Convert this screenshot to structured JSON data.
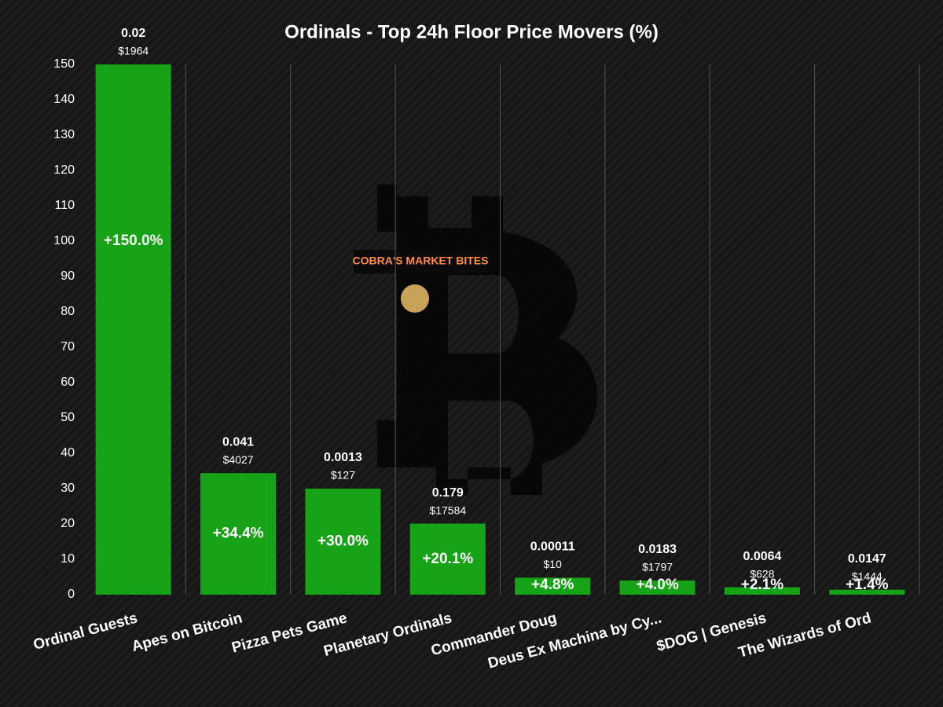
{
  "chart_data": {
    "type": "bar",
    "title": "Ordinals - Top 24h Floor Price Movers (%)",
    "watermark": "COBRA'S MARKET BITES",
    "categories": [
      "Ordinal Guests",
      "Apes on Bitcoin",
      "Pizza Pets Game",
      "Planetary Ordinals",
      "Commander Doug",
      "Deus Ex Machina by Cy...",
      "$DOG | Genesis",
      "The Wizards of Ord"
    ],
    "values": [
      150.0,
      34.4,
      30.0,
      20.1,
      4.8,
      4.0,
      2.1,
      1.4
    ],
    "value_labels": [
      "+150.0%",
      "+34.4%",
      "+30.0%",
      "+20.1%",
      "+4.8%",
      "+4.0%",
      "+2.1%",
      "+1.4%"
    ],
    "floor_labels": [
      "0.02",
      "0.041",
      "0.0013",
      "0.179",
      "0.00011",
      "0.0183",
      "0.0064",
      "0.0147"
    ],
    "usd_labels": [
      "$1964",
      "$4027",
      "$127",
      "$17584",
      "$10",
      "$1797",
      "$628",
      "$1444"
    ],
    "color": "#17a317",
    "ylim": [
      0,
      150
    ],
    "yticks": [
      0,
      10,
      20,
      30,
      40,
      50,
      60,
      70,
      80,
      90,
      100,
      110,
      120,
      130,
      140,
      150
    ],
    "grid": true
  }
}
